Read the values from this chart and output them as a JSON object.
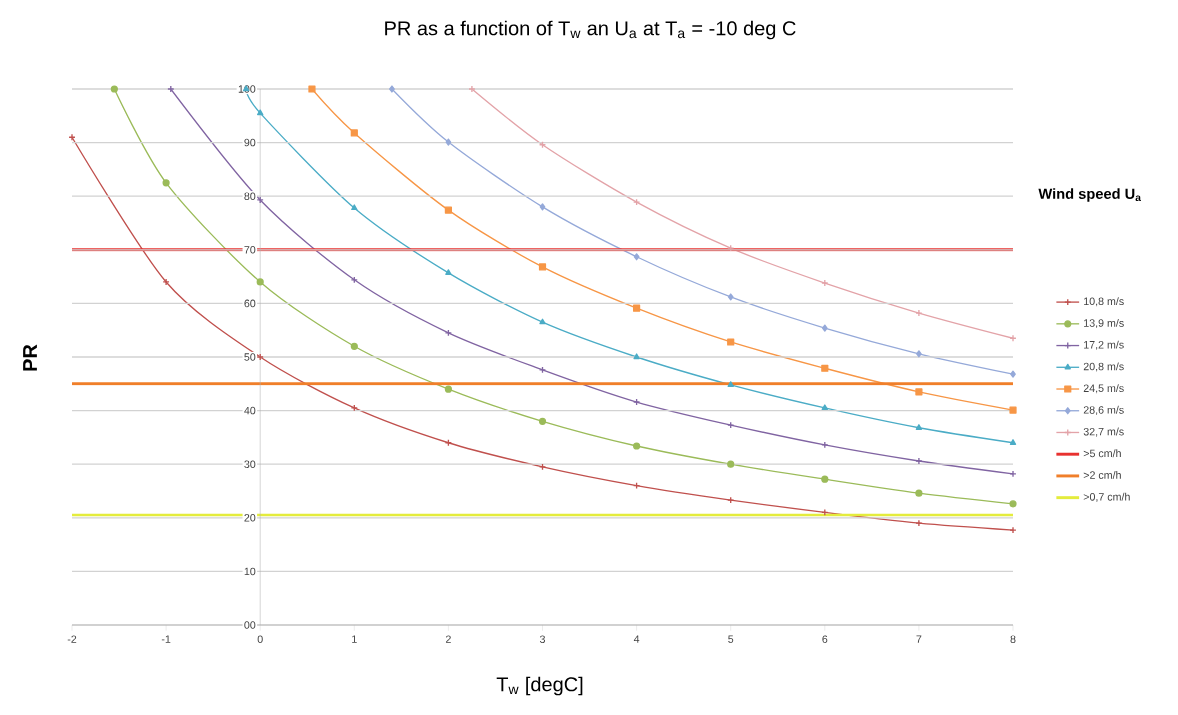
{
  "chart_data": {
    "type": "line",
    "title": "PR as a function of T$_{w}$ an U$_{a}$ at T$_{a}$ = -10 deg C",
    "xlabel": "T$_{w}$ [degC]",
    "ylabel": "PR",
    "legend_title": "Wind speed U$_{a}$",
    "series": [
      {
        "name": "10,8 m/s",
        "color": "#c0504d",
        "marker": "cross",
        "x": [
          -2,
          -1,
          0,
          1,
          2,
          3,
          4,
          5,
          6,
          7,
          8
        ],
        "values": [
          91,
          64,
          50,
          40.5,
          34,
          29.5,
          26,
          23.3,
          21,
          19,
          17.7
        ]
      },
      {
        "name": "13,9 m/s",
        "color": "#9bbb59",
        "marker": "circle",
        "x": [
          -1.55,
          -1,
          0,
          1,
          2,
          3,
          4,
          5,
          6,
          7,
          8
        ],
        "values": [
          100,
          82.5,
          64,
          52,
          44,
          38,
          33.4,
          30,
          27.2,
          24.6,
          22.6
        ]
      },
      {
        "name": "17,2 m/s",
        "color": "#8064a2",
        "marker": "cross",
        "x": [
          -0.95,
          0,
          1,
          2,
          3,
          4,
          5,
          6,
          7,
          8
        ],
        "values": [
          100,
          79.3,
          64.4,
          54.5,
          47.6,
          41.6,
          37.3,
          33.6,
          30.6,
          28.2
        ]
      },
      {
        "name": "20,8 m/s",
        "color": "#4bacc6",
        "marker": "triangle",
        "x": [
          -0.15,
          0,
          1,
          2,
          3,
          4,
          5,
          6,
          7,
          8
        ],
        "values": [
          100,
          95.5,
          77.8,
          65.7,
          56.5,
          50,
          44.8,
          40.5,
          36.8,
          34
        ]
      },
      {
        "name": "24,5 m/s",
        "color": "#f79646",
        "marker": "square",
        "x": [
          0.55,
          1,
          2,
          3,
          4,
          5,
          6,
          7,
          8
        ],
        "values": [
          100,
          91.8,
          77.4,
          66.8,
          59.1,
          52.8,
          47.9,
          43.5,
          40.1
        ]
      },
      {
        "name": "28,6 m/s",
        "color": "#95a9d9",
        "marker": "diamond",
        "x": [
          1.4,
          2,
          3,
          4,
          5,
          6,
          7,
          8
        ],
        "values": [
          100,
          90.1,
          78,
          68.7,
          61.2,
          55.4,
          50.6,
          46.8
        ]
      },
      {
        "name": "32,7 m/s",
        "color": "#e3a3a8",
        "marker": "cross",
        "x": [
          2.25,
          3,
          4,
          5,
          6,
          7,
          8
        ],
        "values": [
          100,
          89.6,
          78.9,
          70.3,
          63.8,
          58.2,
          53.5
        ]
      }
    ],
    "ref_lines": [
      {
        "axis": "y",
        "value": 70,
        "label": ">5 cm/h",
        "color": "#e8312f"
      },
      {
        "axis": "y",
        "value": 45,
        "label": ">2 cm/h",
        "color": "#f07f2a"
      },
      {
        "axis": "y",
        "value": 20.5,
        "label": ">0,7 cm/h",
        "color": "#e4ec3c"
      }
    ],
    "xlim": [
      -2,
      8
    ],
    "ylim": [
      0,
      100
    ],
    "xticks": [
      -2,
      -1,
      0,
      1,
      2,
      3,
      4,
      5,
      6,
      7,
      8
    ],
    "yticks": [
      {
        "value": 0,
        "label": "00"
      },
      10,
      20,
      30,
      40,
      50,
      60,
      70,
      80,
      90,
      100
    ],
    "grid": "y",
    "legend": "right",
    "line_style": "solid"
  }
}
